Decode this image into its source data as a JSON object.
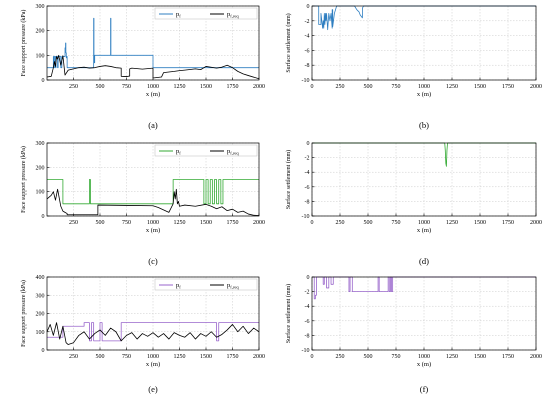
{
  "panels_order": [
    "a",
    "b",
    "c",
    "d",
    "e",
    "f"
  ],
  "chart_data": [
    {
      "panel": "a",
      "caption": "(a)",
      "type": "line",
      "xlabel": "x (m)",
      "ylabel": "Face support pressure (kPa)",
      "xlim": [
        0,
        2000
      ],
      "ylim": [
        0,
        300
      ],
      "xticks": [
        250,
        500,
        750,
        1000,
        1250,
        1500,
        1750,
        2000
      ],
      "yticks": [
        0,
        100,
        200,
        300
      ],
      "grid": true,
      "legend_position": "top-right",
      "series": [
        {
          "name": "p_f",
          "name_main": "p",
          "name_sub": "f",
          "color": "#2f7fc1",
          "x": [
            0,
            60,
            60,
            65,
            65,
            70,
            70,
            80,
            80,
            85,
            85,
            100,
            100,
            105,
            105,
            130,
            130,
            140,
            140,
            170,
            170,
            175,
            175,
            178,
            178,
            182,
            182,
            185,
            185,
            190,
            190,
            440,
            440,
            443,
            443,
            450,
            450,
            460,
            460,
            600,
            600,
            603,
            603,
            610,
            610,
            1000,
            1000,
            2000
          ],
          "y": [
            50,
            50,
            95,
            95,
            50,
            50,
            95,
            95,
            50,
            50,
            95,
            95,
            50,
            50,
            95,
            95,
            50,
            50,
            95,
            95,
            130,
            130,
            150,
            150,
            110,
            110,
            90,
            90,
            95,
            95,
            50,
            50,
            250,
            250,
            70,
            70,
            100,
            100,
            100,
            100,
            250,
            250,
            100,
            100,
            100,
            100,
            50,
            50
          ]
        },
        {
          "name": "p_f,req",
          "name_main": "p",
          "name_sub": "f,req",
          "color": "#000000",
          "x": [
            0,
            40,
            60,
            70,
            80,
            90,
            100,
            110,
            130,
            150,
            170,
            200,
            250,
            300,
            350,
            400,
            450,
            500,
            550,
            600,
            650,
            700,
            700,
            750,
            780,
            780,
            800,
            900,
            1000,
            1000,
            1040,
            1080,
            1100,
            1200,
            1250,
            1300,
            1400,
            1450,
            1500,
            1600,
            1650,
            1700,
            1750,
            1800,
            1850,
            1900,
            2000
          ],
          "y": [
            12,
            15,
            50,
            75,
            55,
            95,
            85,
            100,
            60,
            98,
            20,
            40,
            45,
            50,
            52,
            48,
            50,
            55,
            58,
            55,
            50,
            48,
            15,
            14,
            16,
            45,
            48,
            44,
            48,
            8,
            10,
            12,
            30,
            35,
            38,
            40,
            45,
            42,
            55,
            48,
            52,
            60,
            50,
            35,
            25,
            18,
            5
          ]
        }
      ]
    },
    {
      "panel": "b",
      "caption": "(b)",
      "type": "line",
      "xlabel": "x (m)",
      "ylabel": "Surface settlement (mm)",
      "xlim": [
        0,
        2000
      ],
      "ylim": [
        -10,
        0
      ],
      "xticks": [
        0,
        250,
        500,
        750,
        1000,
        1250,
        1500,
        1750,
        2000
      ],
      "yticks": [
        0,
        -2,
        -4,
        -6,
        -8,
        -10
      ],
      "grid": true,
      "series": [
        {
          "color": "#2f7fc1",
          "x": [
            0,
            60,
            60,
            80,
            80,
            95,
            100,
            105,
            110,
            115,
            120,
            125,
            130,
            140,
            150,
            160,
            170,
            180,
            180,
            185,
            185,
            200,
            220,
            250,
            300,
            380,
            400,
            420,
            430,
            440,
            450,
            450,
            460,
            2000
          ],
          "y": [
            0,
            0,
            -2.5,
            -2.5,
            -1,
            -3,
            -2,
            -3,
            -1,
            -2.5,
            -1,
            -2,
            -1,
            -3.2,
            -1,
            -2,
            -1,
            -3,
            -0.5,
            -0.5,
            -2.8,
            -1,
            0,
            0,
            0,
            0,
            -0.5,
            -0.8,
            -1.2,
            -1.4,
            -1.6,
            -0.3,
            0,
            0
          ]
        }
      ]
    },
    {
      "panel": "c",
      "caption": "(c)",
      "type": "line",
      "xlabel": "x (m)",
      "ylabel": "Face support pressure (kPa)",
      "xlim": [
        0,
        2000
      ],
      "ylim": [
        0,
        300
      ],
      "xticks": [
        250,
        500,
        750,
        1000,
        1250,
        1500,
        1750,
        2000
      ],
      "yticks": [
        0,
        100,
        200,
        300
      ],
      "grid": true,
      "legend_position": "top-right",
      "series": [
        {
          "name": "p_f",
          "name_main": "p",
          "name_sub": "f",
          "color": "#33aa33",
          "x": [
            0,
            150,
            150,
            400,
            400,
            410,
            410,
            1190,
            1190,
            1480,
            1480,
            1500,
            1500,
            1520,
            1520,
            1540,
            1540,
            1560,
            1560,
            1580,
            1580,
            1600,
            1600,
            1620,
            1620,
            1640,
            1640,
            1660,
            1660,
            2000
          ],
          "y": [
            150,
            150,
            50,
            50,
            150,
            150,
            50,
            50,
            150,
            150,
            50,
            50,
            150,
            150,
            50,
            50,
            150,
            150,
            50,
            50,
            150,
            150,
            50,
            50,
            150,
            150,
            50,
            50,
            150,
            150
          ]
        },
        {
          "name": "p_f,req",
          "name_main": "p",
          "name_sub": "f,req",
          "color": "#000000",
          "x": [
            0,
            40,
            60,
            80,
            100,
            130,
            150,
            170,
            190,
            190,
            480,
            480,
            1000,
            1050,
            1150,
            1190,
            1200,
            1210,
            1220,
            1230,
            1240,
            1250,
            1300,
            1400,
            1500,
            1550,
            1600,
            1650,
            1700,
            1750,
            1800,
            1850,
            1900,
            1950,
            2000
          ],
          "y": [
            70,
            85,
            100,
            65,
            110,
            40,
            20,
            15,
            10,
            5,
            5,
            45,
            42,
            35,
            15,
            50,
            100,
            70,
            110,
            50,
            60,
            40,
            45,
            40,
            48,
            40,
            30,
            38,
            22,
            28,
            15,
            20,
            8,
            3,
            2
          ]
        }
      ]
    },
    {
      "panel": "d",
      "caption": "(d)",
      "type": "line",
      "xlabel": "x (m)",
      "ylabel": "Surface settlement (mm)",
      "xlim": [
        0,
        2000
      ],
      "ylim": [
        -10,
        0
      ],
      "xticks": [
        0,
        250,
        500,
        750,
        1000,
        1250,
        1500,
        1750,
        2000
      ],
      "yticks": [
        0,
        -2,
        -4,
        -6,
        -8,
        -10
      ],
      "grid": true,
      "series": [
        {
          "color": "#33aa33",
          "x": [
            0,
            1185,
            1190,
            1195,
            1200,
            1205,
            1210,
            2000
          ],
          "y": [
            0,
            0,
            -1,
            -2.8,
            -3.2,
            -1,
            0,
            0
          ]
        }
      ]
    },
    {
      "panel": "e",
      "caption": "(e)",
      "type": "line",
      "xlabel": "x (m)",
      "ylabel": "Face support pressure (kPa)",
      "xlim": [
        0,
        2000
      ],
      "ylim": [
        0,
        400
      ],
      "xticks": [
        250,
        500,
        750,
        1000,
        1250,
        1500,
        1750,
        2000
      ],
      "yticks": [
        0,
        100,
        200,
        300,
        400
      ],
      "grid": true,
      "legend_position": "top-right",
      "series": [
        {
          "name": "p_f",
          "name_main": "p",
          "name_sub": "f",
          "color": "#9966cc",
          "x": [
            0,
            150,
            150,
            350,
            350,
            400,
            400,
            420,
            420,
            440,
            440,
            500,
            500,
            520,
            520,
            700,
            700,
            1600,
            1600,
            1620,
            1620,
            2000
          ],
          "y": [
            70,
            70,
            130,
            130,
            150,
            150,
            50,
            50,
            150,
            150,
            50,
            50,
            150,
            150,
            50,
            50,
            150,
            150,
            50,
            50,
            150,
            150
          ]
        },
        {
          "name": "p_f,req",
          "name_main": "p",
          "name_sub": "f,req",
          "color": "#000000",
          "x": [
            0,
            30,
            60,
            90,
            120,
            150,
            180,
            200,
            250,
            300,
            350,
            400,
            450,
            500,
            550,
            600,
            650,
            700,
            750,
            800,
            850,
            900,
            950,
            1000,
            1050,
            1100,
            1150,
            1200,
            1250,
            1300,
            1350,
            1400,
            1450,
            1500,
            1550,
            1600,
            1650,
            1700,
            1750,
            1800,
            1850,
            1900,
            1950,
            2000
          ],
          "y": [
            100,
            140,
            80,
            150,
            60,
            130,
            40,
            30,
            40,
            80,
            100,
            60,
            90,
            110,
            80,
            120,
            100,
            50,
            80,
            95,
            60,
            90,
            75,
            95,
            70,
            90,
            60,
            95,
            80,
            70,
            95,
            60,
            90,
            75,
            100,
            70,
            85,
            110,
            140,
            100,
            130,
            90,
            120,
            100
          ]
        }
      ]
    },
    {
      "panel": "f",
      "caption": "(f)",
      "type": "line",
      "xlabel": "x (m)",
      "ylabel": "Surface settlement (mm)",
      "xlim": [
        0,
        2000
      ],
      "ylim": [
        -10,
        0
      ],
      "xticks": [
        0,
        250,
        500,
        750,
        1000,
        1250,
        1500,
        1750,
        2000
      ],
      "yticks": [
        0,
        -2,
        -4,
        -6,
        -8,
        -10
      ],
      "grid": true,
      "series": [
        {
          "color": "#9966cc",
          "x": [
            0,
            20,
            20,
            30,
            30,
            40,
            40,
            100,
            100,
            110,
            110,
            130,
            130,
            150,
            150,
            170,
            170,
            190,
            190,
            330,
            330,
            340,
            340,
            360,
            360,
            590,
            590,
            600,
            600,
            680,
            680,
            690,
            690,
            700,
            700,
            710,
            710,
            720,
            720,
            2000
          ],
          "y": [
            0,
            0,
            -3,
            -3,
            -2.5,
            -2.5,
            0,
            0,
            -1,
            -1,
            0,
            0,
            -1.5,
            -1.5,
            0,
            0,
            -1,
            -1,
            0,
            0,
            -2,
            -2,
            0,
            0,
            -2,
            -2,
            0,
            0,
            -2,
            -2,
            0,
            0,
            -2,
            -2,
            0,
            0,
            -2,
            -2,
            0,
            0
          ]
        }
      ]
    }
  ]
}
